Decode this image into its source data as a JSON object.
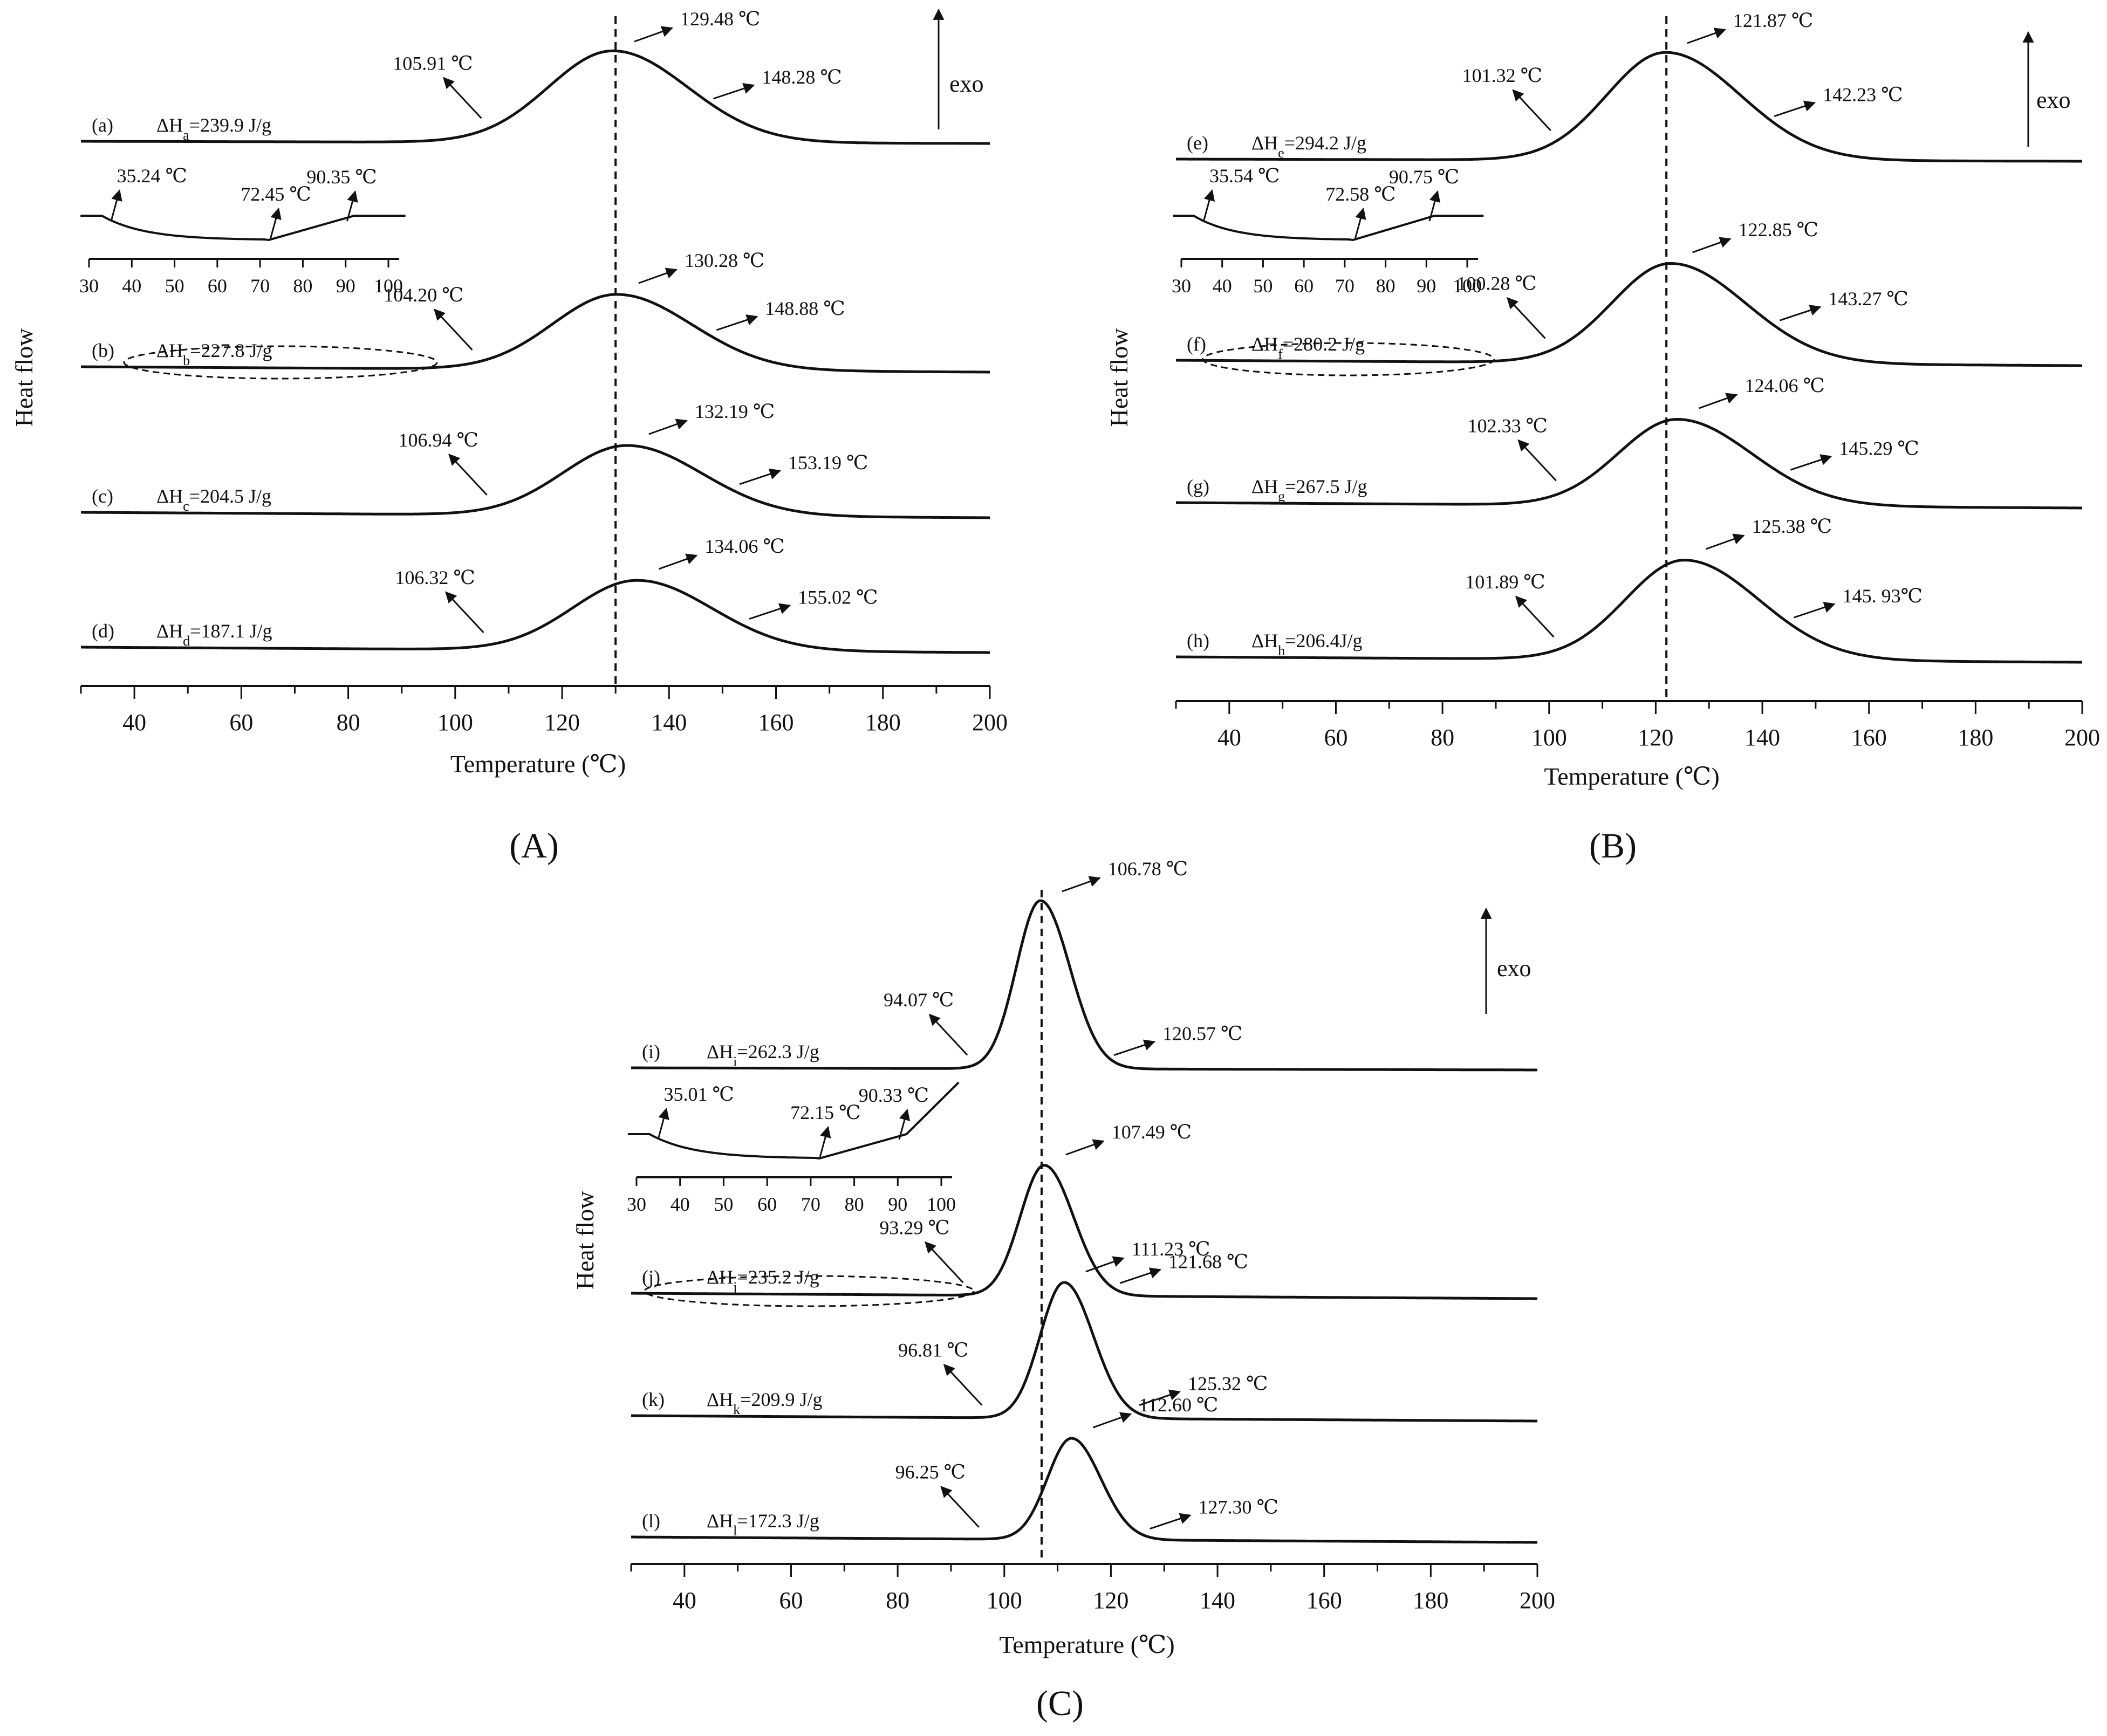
{
  "figure": {
    "panel_labels": [
      "(A)",
      "(B)",
      "(C)"
    ],
    "exo_label": "exo"
  },
  "chart_data": [
    {
      "panel": "(A)",
      "type": "line",
      "title": "",
      "xlabel": "Temperature (℃)",
      "ylabel": "Heat flow",
      "xlim": [
        30,
        200
      ],
      "xticks": [
        40,
        60,
        80,
        100,
        120,
        140,
        160,
        180,
        200
      ],
      "tick_labels": [
        "40",
        "60",
        "80",
        "100",
        "120",
        "140",
        "160",
        "180",
        "200"
      ],
      "vline_x": 130,
      "series": [
        {
          "name": "(a)",
          "dh_sub": "a",
          "dh_value": "=239.9 J/g",
          "onset": 105.91,
          "peak": 129.48,
          "end": 148.28,
          "onset_label": "105.91 ℃",
          "peak_label": "129.48 ℃",
          "end_label": "148.28 ℃",
          "height": 1.0
        },
        {
          "name": "(b)",
          "dh_sub": "b",
          "dh_value": "=227.8 J/g",
          "onset": 104.2,
          "peak": 130.28,
          "end": 148.88,
          "onset_label": "104.20 ℃",
          "peak_label": "130.28 ℃",
          "end_label": "148.88 ℃",
          "height": 0.85
        },
        {
          "name": "(c)",
          "dh_sub": "c",
          "dh_value": "=204.5 J/g",
          "onset": 106.94,
          "peak": 132.19,
          "end": 153.19,
          "onset_label": "106.94 ℃",
          "peak_label": "132.19 ℃",
          "end_label": "153.19 ℃",
          "height": 0.8
        },
        {
          "name": "(d)",
          "dh_sub": "d",
          "dh_value": "=187.1 J/g",
          "onset": 106.32,
          "peak": 134.06,
          "end": 155.02,
          "onset_label": "106.32 ℃",
          "peak_label": "134.06 ℃",
          "end_label": "155.02 ℃",
          "height": 0.8
        }
      ],
      "inset": {
        "xlim": [
          30,
          100
        ],
        "ticks": [
          "30",
          "40",
          "50",
          "60",
          "70",
          "80",
          "90",
          "100"
        ],
        "tick_values": [
          30,
          40,
          50,
          60,
          70,
          80,
          90,
          100
        ],
        "points": [
          35.24,
          72.45,
          90.35
        ],
        "labels": [
          "35.24 ℃",
          "72.45 ℃",
          "90.35 ℃"
        ]
      }
    },
    {
      "panel": "(B)",
      "type": "line",
      "title": "",
      "xlabel": "Temperature (℃)",
      "ylabel": "Heat flow",
      "xlim": [
        30,
        200
      ],
      "xticks": [
        40,
        60,
        80,
        100,
        120,
        140,
        160,
        180,
        200
      ],
      "tick_labels": [
        "40",
        "60",
        "80",
        "100",
        "120",
        "140",
        "160",
        "180",
        "200"
      ],
      "vline_x": 122,
      "series": [
        {
          "name": "(e)",
          "dh_sub": "e",
          "dh_value": "=294.2 J/g",
          "onset": 101.32,
          "peak": 121.87,
          "end": 142.23,
          "onset_label": "101.32 ℃",
          "peak_label": "121.87 ℃",
          "end_label": "142.23 ℃",
          "height": 1.0
        },
        {
          "name": "(f)",
          "dh_sub": "f",
          "dh_value": "=280.2 J/g",
          "onset": 100.28,
          "peak": 122.85,
          "end": 143.27,
          "onset_label": "100.28 ℃",
          "peak_label": "122.85 ℃",
          "end_label": "143.27 ℃",
          "height": 0.9
        },
        {
          "name": "(g)",
          "dh_sub": "g",
          "dh_value": "=267.5 J/g",
          "onset": 102.33,
          "peak": 124.06,
          "end": 145.29,
          "onset_label": "102.33 ℃",
          "peak_label": "124.06 ℃",
          "end_label": "145.29 ℃",
          "height": 0.85
        },
        {
          "name": "(h)",
          "dh_sub": "h",
          "dh_value": "=206.4J/g",
          "onset": 101.89,
          "peak": 125.38,
          "end": 145.93,
          "onset_label": "101.89 ℃",
          "peak_label": "125.38 ℃",
          "end_label": "145. 93℃",
          "height": 0.9
        }
      ],
      "inset": {
        "xlim": [
          30,
          100
        ],
        "ticks": [
          "30",
          "40",
          "50",
          "60",
          "70",
          "80",
          "90",
          "100"
        ],
        "tick_values": [
          30,
          40,
          50,
          60,
          70,
          80,
          90,
          100
        ],
        "points": [
          35.54,
          72.58,
          90.75
        ],
        "labels": [
          "35.54 ℃",
          "72.58 ℃",
          "90.75 ℃"
        ]
      }
    },
    {
      "panel": "(C)",
      "type": "line",
      "title": "",
      "xlabel": "Temperature (℃)",
      "ylabel": "Heat flow",
      "xlim": [
        30,
        200
      ],
      "xticks": [
        40,
        60,
        80,
        100,
        120,
        140,
        160,
        180,
        200
      ],
      "tick_labels": [
        "40",
        "60",
        "80",
        "100",
        "120",
        "140",
        "160",
        "180",
        "200"
      ],
      "vline_x": 107,
      "series": [
        {
          "name": "(i)",
          "dh_sub": "i",
          "dh_value": "=262.3 J/g",
          "onset": 94.07,
          "peak": 106.78,
          "end": 120.57,
          "onset_label": "94.07 ℃",
          "peak_label": "106.78 ℃",
          "end_label": "120.57 ℃",
          "height": 1.0
        },
        {
          "name": "(j)",
          "dh_sub": "j",
          "dh_value": "=235.2 J/g",
          "onset": 93.29,
          "peak": 107.49,
          "end": 121.68,
          "onset_label": "93.29 ℃",
          "peak_label": "107.49 ℃",
          "end_label": "121.68 ℃",
          "height": 1.0
        },
        {
          "name": "(k)",
          "dh_sub": "k",
          "dh_value": "=209.9 J/g",
          "onset": 96.81,
          "peak": 111.23,
          "end": 125.32,
          "onset_label": "96.81 ℃",
          "peak_label": "111.23 ℃",
          "end_label": "125.32 ℃",
          "height": 0.9
        },
        {
          "name": "(l)",
          "dh_sub": "l",
          "dh_value": "=172.3 J/g",
          "onset": 96.25,
          "peak": 112.6,
          "end": 127.3,
          "onset_label": "96.25 ℃",
          "peak_label": "112.60 ℃",
          "end_label": "127.30 ℃",
          "height": 0.8
        }
      ],
      "inset": {
        "xlim": [
          30,
          100
        ],
        "ticks": [
          "30",
          "40",
          "50",
          "60",
          "70",
          "80",
          "90",
          "100"
        ],
        "tick_values": [
          30,
          40,
          50,
          60,
          70,
          80,
          90,
          100
        ],
        "points": [
          35.01,
          72.15,
          90.33
        ],
        "labels": [
          "35.01 ℃",
          "72.15 ℃",
          "90.33 ℃"
        ]
      }
    }
  ]
}
